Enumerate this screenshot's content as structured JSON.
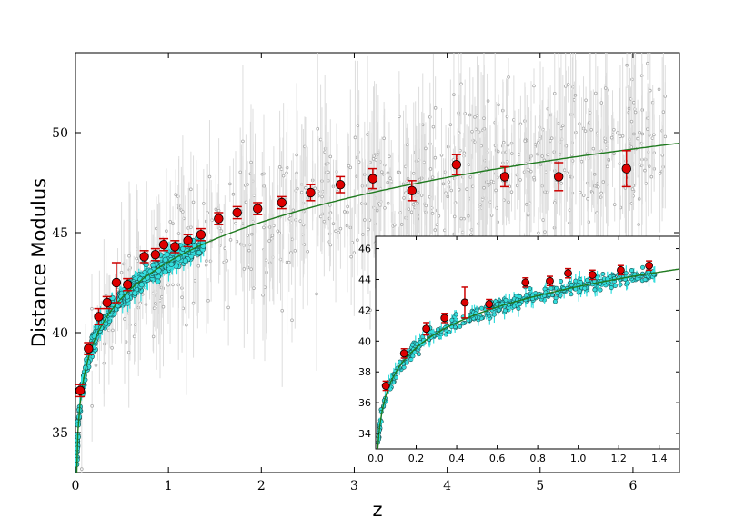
{
  "chart_data": [
    {
      "type": "scatter",
      "panel": "main",
      "xlabel": "z",
      "ylabel": "Distance Modulus",
      "xlim": [
        0,
        6.5
      ],
      "ylim": [
        33,
        54
      ],
      "xticks": [
        0,
        1,
        2,
        3,
        4,
        5,
        6
      ],
      "yticks": [
        35,
        40,
        45,
        50
      ],
      "grid": false,
      "legend": "none",
      "colors": {
        "model_curve": "#1f7a1f",
        "binned_points": "#dd0000",
        "binned_errorbars": "#cc0000",
        "low_z_points": "#33dddd",
        "high_z_points": "#aaaaaa",
        "high_z_errorbars": "#dddddd"
      },
      "series": [
        {
          "role": "binned",
          "x": [
            0.05,
            0.14,
            0.25,
            0.34,
            0.44,
            0.56,
            0.74,
            0.86,
            0.95,
            1.07,
            1.21,
            1.35,
            1.54,
            1.74,
            1.96,
            2.22,
            2.53,
            2.85,
            3.2,
            3.62,
            4.1,
            4.62,
            5.2,
            5.93
          ],
          "y": [
            37.1,
            39.2,
            40.8,
            41.5,
            42.5,
            42.4,
            43.8,
            43.9,
            44.4,
            44.3,
            44.6,
            44.9,
            45.7,
            46.0,
            46.2,
            46.5,
            47.0,
            47.4,
            47.7,
            47.1,
            48.4,
            47.8,
            47.8,
            48.2
          ],
          "yerr": [
            0.3,
            0.3,
            0.4,
            0.3,
            1.0,
            0.3,
            0.3,
            0.3,
            0.3,
            0.3,
            0.3,
            0.3,
            0.3,
            0.3,
            0.3,
            0.3,
            0.4,
            0.4,
            0.5,
            0.5,
            0.5,
            0.5,
            0.7,
            0.9
          ]
        }
      ]
    },
    {
      "type": "scatter",
      "panel": "inset",
      "xlim": [
        0,
        1.5
      ],
      "ylim": [
        33,
        46.8
      ],
      "xticks": [
        0.0,
        0.2,
        0.4,
        0.6,
        0.8,
        1.0,
        1.2,
        1.4
      ],
      "yticks": [
        34,
        36,
        38,
        40,
        42,
        44,
        46
      ],
      "series": [
        {
          "role": "binned",
          "x": [
            0.05,
            0.14,
            0.25,
            0.34,
            0.44,
            0.56,
            0.74,
            0.86,
            0.95,
            1.07,
            1.21,
            1.35
          ],
          "y": [
            37.1,
            39.2,
            40.8,
            41.5,
            42.5,
            42.4,
            43.8,
            43.9,
            44.4,
            44.3,
            44.6,
            44.9
          ],
          "yerr": [
            0.3,
            0.3,
            0.4,
            0.3,
            1.0,
            0.3,
            0.3,
            0.3,
            0.3,
            0.3,
            0.3,
            0.3
          ]
        }
      ]
    }
  ]
}
